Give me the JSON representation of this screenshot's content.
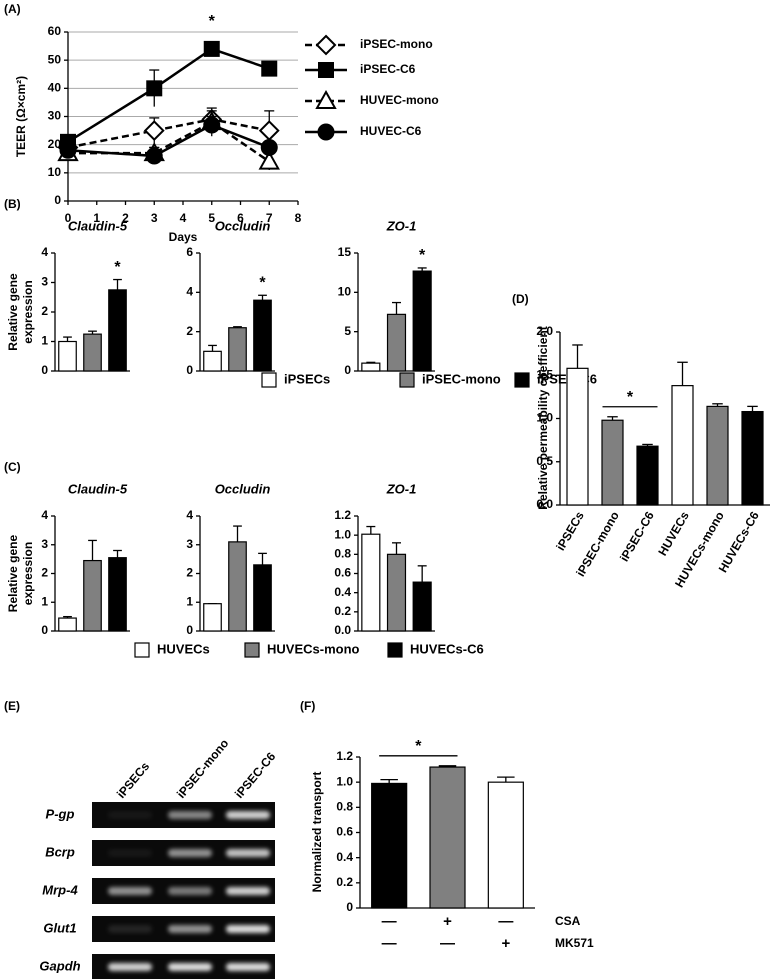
{
  "chart_data": [
    {
      "type": "line",
      "panel_label": "(A)",
      "x_label": "Days",
      "y_label": "TEER (Ω×cm²)",
      "x": [
        0,
        3,
        5,
        7
      ],
      "xlim": [
        0,
        8
      ],
      "xticks": [
        0,
        1,
        2,
        3,
        4,
        5,
        6,
        7,
        8
      ],
      "ylim": [
        0,
        60
      ],
      "yticks": [
        0,
        10,
        20,
        30,
        40,
        50,
        60
      ],
      "grid": true,
      "series": [
        {
          "name": "iPSEC-mono",
          "color": "#000000",
          "fill": "#ffffff",
          "marker": "diamond",
          "dashed": true,
          "values": [
            19,
            25,
            29,
            25
          ],
          "errors": [
            0,
            4.5,
            3,
            7
          ]
        },
        {
          "name": "iPSEC-C6",
          "color": "#000000",
          "fill": "#000000",
          "marker": "square",
          "dashed": false,
          "values": [
            21,
            40,
            54,
            47
          ],
          "errors": [
            0,
            6.5,
            1,
            0
          ]
        },
        {
          "name": "HUVEC-mono",
          "color": "#000000",
          "fill": "#ffffff",
          "marker": "triangle",
          "dashed": true,
          "values": [
            17,
            17,
            28,
            14
          ],
          "errors": [
            2,
            2,
            5,
            3
          ]
        },
        {
          "name": "HUVEC-C6",
          "color": "#000000",
          "fill": "#000000",
          "marker": "circle",
          "dashed": false,
          "values": [
            18,
            16,
            27,
            19
          ],
          "errors": [
            1,
            3,
            3,
            2
          ]
        }
      ],
      "significance": {
        "x": 5,
        "label": "*"
      }
    },
    {
      "type": "bar-panels",
      "panel_label": "(B)",
      "y_label": [
        "Relative gene",
        "expression"
      ],
      "series": [
        {
          "name": "iPSECs",
          "color": "#ffffff"
        },
        {
          "name": "iPSEC-mono",
          "color": "#808080"
        },
        {
          "name": "iPSEC-C6",
          "color": "#000000"
        }
      ],
      "subplots": [
        {
          "title": "Claudin-5",
          "values": [
            1.0,
            1.25,
            2.75
          ],
          "errors": [
            0.15,
            0.1,
            0.35
          ],
          "ylim": [
            0,
            4
          ],
          "yticks": [
            0,
            1,
            2,
            3,
            4
          ],
          "significance": {
            "bar": 2,
            "label": "*"
          }
        },
        {
          "title": "Occludin",
          "values": [
            1.0,
            2.2,
            3.6
          ],
          "errors": [
            0.3,
            0.05,
            0.25
          ],
          "ylim": [
            0,
            6
          ],
          "yticks": [
            0,
            2,
            4,
            6
          ],
          "significance": {
            "bar": 2,
            "label": "*"
          }
        },
        {
          "title": "ZO-1",
          "values": [
            1.0,
            7.2,
            12.7
          ],
          "errors": [
            0.1,
            1.5,
            0.4
          ],
          "ylim": [
            0,
            15
          ],
          "yticks": [
            0,
            5,
            10,
            15
          ],
          "significance": {
            "bar": 2,
            "label": "*"
          }
        }
      ]
    },
    {
      "type": "bar-panels",
      "panel_label": "(C)",
      "y_label": [
        "Relative gene",
        "expression"
      ],
      "series": [
        {
          "name": "HUVECs",
          "color": "#ffffff"
        },
        {
          "name": "HUVECs-mono",
          "color": "#808080"
        },
        {
          "name": "HUVECs-C6",
          "color": "#000000"
        }
      ],
      "subplots": [
        {
          "title": "Claudin-5",
          "values": [
            0.45,
            2.45,
            2.55
          ],
          "errors": [
            0.05,
            0.7,
            0.25
          ],
          "ylim": [
            0,
            4
          ],
          "yticks": [
            0,
            1,
            2,
            3,
            4
          ]
        },
        {
          "title": "Occludin",
          "values": [
            0.95,
            3.1,
            2.3
          ],
          "errors": [
            0,
            0.55,
            0.4
          ],
          "ylim": [
            0,
            4
          ],
          "yticks": [
            0,
            1,
            2,
            3,
            4
          ]
        },
        {
          "title": "ZO-1",
          "values": [
            1.01,
            0.8,
            0.51
          ],
          "errors": [
            0.08,
            0.12,
            0.17
          ],
          "ylim": [
            0,
            1.2
          ],
          "yticks": [
            {
              "value": 0,
              "label": "0.0"
            },
            0.2,
            0.4,
            0.6,
            0.8,
            {
              "value": 1,
              "label": "1.0"
            },
            1.2
          ]
        }
      ]
    },
    {
      "type": "bar",
      "panel_label": "(D)",
      "y_label": "Relative permeability coefficient",
      "categories": [
        "iPSECs",
        "iPSEC-mono",
        "iPSEC-C6",
        "HUVECs",
        "HUVECs-mono",
        "HUVECs-C6"
      ],
      "values": [
        1.58,
        0.98,
        0.68,
        1.38,
        1.14,
        1.08
      ],
      "errors": [
        0.27,
        0.04,
        0.02,
        0.27,
        0.03,
        0.06
      ],
      "colors": [
        "#ffffff",
        "#808080",
        "#000000",
        "#ffffff",
        "#808080",
        "#000000"
      ],
      "ylim": [
        0,
        2
      ],
      "yticks": [
        {
          "value": 0,
          "label": "0.0"
        },
        0.5,
        {
          "value": 1,
          "label": "1.0"
        },
        1.5,
        {
          "value": 2,
          "label": "2.0"
        }
      ],
      "significance": {
        "bars": [
          1,
          2
        ],
        "label": "*"
      }
    },
    {
      "type": "bar",
      "panel_label": "(F)",
      "y_label": "Normalized transport",
      "values": [
        0.99,
        1.12,
        1.0
      ],
      "errors": [
        0.03,
        0.01,
        0.04
      ],
      "colors": [
        "#000000",
        "#808080",
        "#ffffff"
      ],
      "ylim": [
        0,
        1.2
      ],
      "yticks": [
        0,
        0.2,
        0.4,
        0.6,
        0.8,
        {
          "value": 1,
          "label": "1.0"
        },
        1.2
      ],
      "treatments": [
        {
          "name": "CSA",
          "signs": [
            "—",
            "+",
            "—"
          ]
        },
        {
          "name": "MK571",
          "signs": [
            "—",
            "—",
            "+"
          ]
        }
      ],
      "significance": {
        "bars": [
          0,
          1
        ],
        "label": "*"
      }
    }
  ],
  "gel": {
    "panel_label": "(E)",
    "columns": [
      "iPSECs",
      "iPSEC-mono",
      "iPSEC-C6"
    ],
    "rows": [
      "P-gp",
      "Bcrp",
      "Mrp-4",
      "Glut1",
      "Gapdh"
    ]
  }
}
